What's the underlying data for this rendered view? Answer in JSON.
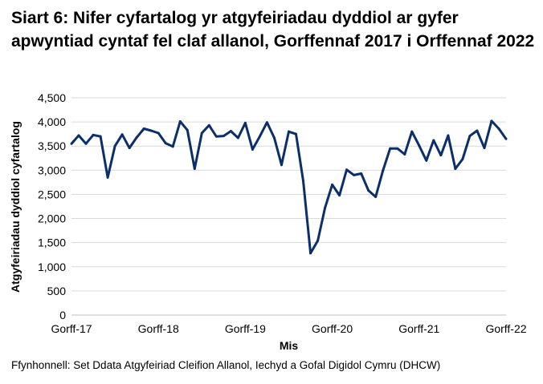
{
  "chart_data": {
    "type": "line",
    "title": "Siart 6: Nifer cyfartalog yr atgyfeiriadau dyddiol ar gyfer apwyntiad cyntaf fel claf allanol, Gorffennaf 2017 i Orffennaf 2022",
    "xlabel": "Mis",
    "ylabel": "Atgyfeiriadau dyddiol cyfartalog",
    "ylim": [
      0,
      4500
    ],
    "yticks": [
      "0",
      "500",
      "1,000",
      "1,500",
      "2,000",
      "2,500",
      "3,000",
      "3,500",
      "4,000",
      "4,500"
    ],
    "xtick_labels": [
      "Gorff-17",
      "Gorff-18",
      "Gorff-19",
      "Gorff-20",
      "Gorff-21",
      "Gorff-22"
    ],
    "grid": "horizontal",
    "line_color": "#0b2f6b",
    "x_start": "2017-07",
    "x_end": "2022-07",
    "values": [
      3550,
      3720,
      3550,
      3730,
      3700,
      2850,
      3500,
      3740,
      3460,
      3680,
      3860,
      3820,
      3770,
      3560,
      3490,
      4010,
      3830,
      3030,
      3770,
      3930,
      3700,
      3710,
      3810,
      3670,
      3980,
      3430,
      3700,
      3990,
      3670,
      3110,
      3800,
      3750,
      2780,
      1280,
      1540,
      2220,
      2700,
      2480,
      3010,
      2900,
      2930,
      2580,
      2450,
      2990,
      3450,
      3450,
      3330,
      3800,
      3510,
      3200,
      3620,
      3310,
      3720,
      3030,
      3230,
      3710,
      3820,
      3460,
      4020,
      3860,
      3650
    ]
  },
  "source": "Ffynhonnell: Set Ddata Atgyfeiriad Cleifion Allanol, Iechyd a Gofal Digidol Cymru (DHCW)"
}
